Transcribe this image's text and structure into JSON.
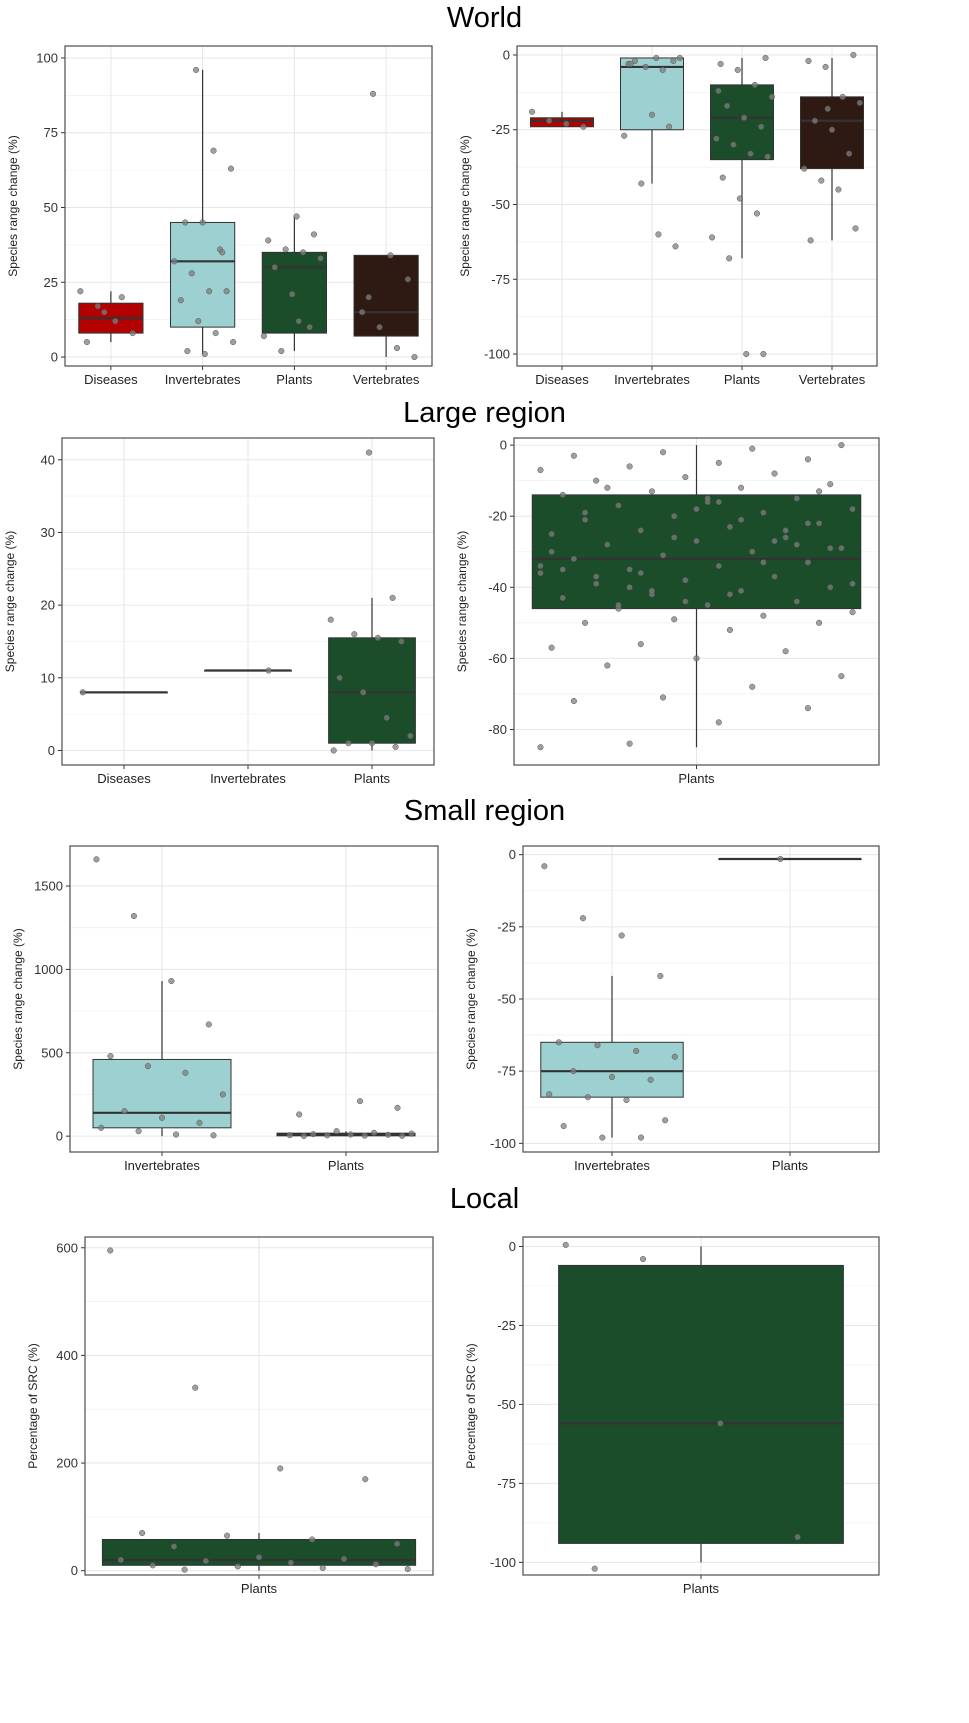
{
  "sections": [
    {
      "title": "World"
    },
    {
      "title": "Large region"
    },
    {
      "title": "Small region"
    },
    {
      "title": "Local"
    }
  ],
  "colors": {
    "Diseases": "#b30000",
    "Invertebrates": "#9dd0d0",
    "Plants": "#1b4d2b",
    "Vertebrates": "#2e1a12",
    "points": "#7f7f7f",
    "grid": "#e6e6e6",
    "panel_border": "#4d4d4d"
  },
  "chart_data": [
    {
      "id": "world-left",
      "type": "box",
      "section": "World",
      "ylabel": "Species range change (%)",
      "ylim": [
        -3,
        104
      ],
      "yticks": [
        0,
        25,
        50,
        75,
        100
      ],
      "categories": [
        "Diseases",
        "Invertebrates",
        "Plants",
        "Vertebrates"
      ],
      "boxes": [
        {
          "category": "Diseases",
          "q1": 8,
          "median": 13,
          "q3": 18,
          "whisker_low": 5,
          "whisker_high": 22
        },
        {
          "category": "Invertebrates",
          "q1": 10,
          "median": 32,
          "q3": 45,
          "whisker_low": 1,
          "whisker_high": 96
        },
        {
          "category": "Plants",
          "q1": 8,
          "median": 30,
          "q3": 35,
          "whisker_low": 2,
          "whisker_high": 47
        },
        {
          "category": "Vertebrates",
          "q1": 7,
          "median": 15,
          "q3": 34,
          "whisker_low": 0,
          "whisker_high": 34
        }
      ],
      "points": [
        [
          0,
          22
        ],
        [
          0,
          17
        ],
        [
          0,
          12
        ],
        [
          0,
          8
        ],
        [
          0,
          5
        ],
        [
          0,
          15
        ],
        [
          0,
          20
        ],
        [
          1,
          96
        ],
        [
          1,
          69
        ],
        [
          1,
          63
        ],
        [
          1,
          45
        ],
        [
          1,
          45
        ],
        [
          1,
          36
        ],
        [
          1,
          32
        ],
        [
          1,
          28
        ],
        [
          1,
          22
        ],
        [
          1,
          22
        ],
        [
          1,
          19
        ],
        [
          1,
          12
        ],
        [
          1,
          8
        ],
        [
          1,
          5
        ],
        [
          1,
          2
        ],
        [
          1,
          1
        ],
        [
          1,
          35
        ],
        [
          2,
          47
        ],
        [
          2,
          41
        ],
        [
          2,
          39
        ],
        [
          2,
          36
        ],
        [
          2,
          35
        ],
        [
          2,
          33
        ],
        [
          2,
          30
        ],
        [
          2,
          21
        ],
        [
          2,
          10
        ],
        [
          2,
          7
        ],
        [
          2,
          2
        ],
        [
          2,
          12
        ],
        [
          3,
          88
        ],
        [
          3,
          34
        ],
        [
          3,
          26
        ],
        [
          3,
          15
        ],
        [
          3,
          10
        ],
        [
          3,
          3
        ],
        [
          3,
          0
        ],
        [
          3,
          20
        ]
      ]
    },
    {
      "id": "world-right",
      "type": "box",
      "section": "World",
      "ylabel": "Species range change (%)",
      "ylim": [
        -104,
        3
      ],
      "yticks": [
        0,
        -25,
        -50,
        -75,
        -100
      ],
      "categories": [
        "Diseases",
        "Invertebrates",
        "Plants",
        "Vertebrates"
      ],
      "boxes": [
        {
          "category": "Diseases",
          "q1": -24,
          "median": -22,
          "q3": -21,
          "whisker_low": -24,
          "whisker_high": -19
        },
        {
          "category": "Invertebrates",
          "q1": -25,
          "median": -4,
          "q3": -1,
          "whisker_low": -43,
          "whisker_high": -1
        },
        {
          "category": "Plants",
          "q1": -35,
          "median": -21,
          "q3": -10,
          "whisker_low": -68,
          "whisker_high": -1
        },
        {
          "category": "Vertebrates",
          "q1": -38,
          "median": -22,
          "q3": -14,
          "whisker_low": -62,
          "whisker_high": -1
        }
      ],
      "points": [
        [
          0,
          -19
        ],
        [
          0,
          -22
        ],
        [
          0,
          -23
        ],
        [
          0,
          -24
        ],
        [
          1,
          -1
        ],
        [
          1,
          -2
        ],
        [
          1,
          -3
        ],
        [
          1,
          -4
        ],
        [
          1,
          -5
        ],
        [
          1,
          -1
        ],
        [
          1,
          -2
        ],
        [
          1,
          -20
        ],
        [
          1,
          -24
        ],
        [
          1,
          -27
        ],
        [
          1,
          -43
        ],
        [
          1,
          -60
        ],
        [
          1,
          -64
        ],
        [
          1,
          -3
        ],
        [
          2,
          -1
        ],
        [
          2,
          -3
        ],
        [
          2,
          -5
        ],
        [
          2,
          -10
        ],
        [
          2,
          -14
        ],
        [
          2,
          -17
        ],
        [
          2,
          -21
        ],
        [
          2,
          -24
        ],
        [
          2,
          -28
        ],
        [
          2,
          -30
        ],
        [
          2,
          -33
        ],
        [
          2,
          -34
        ],
        [
          2,
          -41
        ],
        [
          2,
          -48
        ],
        [
          2,
          -53
        ],
        [
          2,
          -61
        ],
        [
          2,
          -68
        ],
        [
          2,
          -100
        ],
        [
          2,
          -100
        ],
        [
          2,
          -12
        ],
        [
          3,
          0
        ],
        [
          3,
          -2
        ],
        [
          3,
          -4
        ],
        [
          3,
          -14
        ],
        [
          3,
          -16
        ],
        [
          3,
          -22
        ],
        [
          3,
          -25
        ],
        [
          3,
          -33
        ],
        [
          3,
          -38
        ],
        [
          3,
          -42
        ],
        [
          3,
          -45
        ],
        [
          3,
          -58
        ],
        [
          3,
          -62
        ],
        [
          3,
          -18
        ]
      ]
    },
    {
      "id": "large-left",
      "type": "box",
      "section": "Large region",
      "ylabel": "Species range change (%)",
      "ylim": [
        -2,
        43
      ],
      "yticks": [
        0,
        10,
        20,
        30,
        40
      ],
      "categories": [
        "Diseases",
        "Invertebrates",
        "Plants"
      ],
      "boxes": [
        {
          "category": "Diseases",
          "q1": 8,
          "median": 8,
          "q3": 8,
          "whisker_low": 8,
          "whisker_high": 8
        },
        {
          "category": "Invertebrates",
          "q1": 11,
          "median": 11,
          "q3": 11,
          "whisker_low": 11,
          "whisker_high": 11
        },
        {
          "category": "Plants",
          "q1": 1,
          "median": 8,
          "q3": 15.5,
          "whisker_low": 0,
          "whisker_high": 21
        }
      ],
      "points": [
        [
          0,
          8
        ],
        [
          1,
          11
        ],
        [
          2,
          41
        ],
        [
          2,
          21
        ],
        [
          2,
          18
        ],
        [
          2,
          16
        ],
        [
          2,
          15.5
        ],
        [
          2,
          15
        ],
        [
          2,
          10
        ],
        [
          2,
          8
        ],
        [
          2,
          4.5
        ],
        [
          2,
          2
        ],
        [
          2,
          1
        ],
        [
          2,
          1
        ],
        [
          2,
          0.5
        ],
        [
          2,
          0
        ]
      ]
    },
    {
      "id": "large-right",
      "type": "box",
      "section": "Large region",
      "ylabel": "Species range change (%)",
      "ylim": [
        -90,
        2
      ],
      "yticks": [
        0,
        -20,
        -40,
        -60,
        -80
      ],
      "categories": [
        "Plants"
      ],
      "boxes": [
        {
          "category": "Plants",
          "q1": -46,
          "median": -32,
          "q3": -14,
          "whisker_low": -85,
          "whisker_high": 0
        }
      ],
      "points": [
        [
          0,
          -85
        ],
        [
          0,
          -84
        ],
        [
          0,
          -78
        ],
        [
          0,
          -74
        ],
        [
          0,
          -72
        ],
        [
          0,
          -71
        ],
        [
          0,
          -68
        ],
        [
          0,
          -65
        ],
        [
          0,
          -62
        ],
        [
          0,
          -60
        ],
        [
          0,
          -58
        ],
        [
          0,
          -57
        ],
        [
          0,
          -56
        ],
        [
          0,
          -52
        ],
        [
          0,
          -50
        ],
        [
          0,
          -50
        ],
        [
          0,
          -49
        ],
        [
          0,
          -48
        ],
        [
          0,
          -47
        ],
        [
          0,
          -46
        ],
        [
          0,
          -45
        ],
        [
          0,
          -44
        ],
        [
          0,
          -43
        ],
        [
          0,
          -42
        ],
        [
          0,
          -41
        ],
        [
          0,
          -40
        ],
        [
          0,
          -39
        ],
        [
          0,
          -38
        ],
        [
          0,
          -37
        ],
        [
          0,
          -36
        ],
        [
          0,
          -35
        ],
        [
          0,
          -34
        ],
        [
          0,
          -33
        ],
        [
          0,
          -32
        ],
        [
          0,
          -31
        ],
        [
          0,
          -30
        ],
        [
          0,
          -29
        ],
        [
          0,
          -28
        ],
        [
          0,
          -27
        ],
        [
          0,
          -26
        ],
        [
          0,
          -25
        ],
        [
          0,
          -24
        ],
        [
          0,
          -23
        ],
        [
          0,
          -22
        ],
        [
          0,
          -21
        ],
        [
          0,
          -20
        ],
        [
          0,
          -19
        ],
        [
          0,
          -18
        ],
        [
          0,
          -17
        ],
        [
          0,
          -16
        ],
        [
          0,
          -15
        ],
        [
          0,
          -14
        ],
        [
          0,
          -13
        ],
        [
          0,
          -12
        ],
        [
          0,
          -11
        ],
        [
          0,
          -10
        ],
        [
          0,
          -9
        ],
        [
          0,
          -8
        ],
        [
          0,
          -7
        ],
        [
          0,
          -6
        ],
        [
          0,
          -5
        ],
        [
          0,
          -4
        ],
        [
          0,
          -3
        ],
        [
          0,
          -2
        ],
        [
          0,
          -1
        ],
        [
          0,
          0
        ],
        [
          0,
          -12
        ],
        [
          0,
          -18
        ],
        [
          0,
          -24
        ],
        [
          0,
          -30
        ],
        [
          0,
          -36
        ],
        [
          0,
          -42
        ],
        [
          0,
          -13
        ],
        [
          0,
          -19
        ],
        [
          0,
          -26
        ],
        [
          0,
          -33
        ],
        [
          0,
          -39
        ],
        [
          0,
          -45
        ],
        [
          0,
          -15
        ],
        [
          0,
          -28
        ],
        [
          0,
          -35
        ],
        [
          0,
          -41
        ],
        [
          0,
          -21
        ],
        [
          0,
          -29
        ],
        [
          0,
          -37
        ],
        [
          0,
          -44
        ],
        [
          0,
          -27
        ],
        [
          0,
          -34
        ],
        [
          0,
          -40
        ],
        [
          0,
          -16
        ],
        [
          0,
          -22
        ]
      ]
    },
    {
      "id": "small-left",
      "type": "box",
      "section": "Small region",
      "ylabel": "Species range change (%)",
      "ylim": [
        -95,
        1740
      ],
      "yticks": [
        0,
        500,
        1000,
        1500
      ],
      "categories": [
        "Invertebrates",
        "Plants"
      ],
      "boxes": [
        {
          "category": "Invertebrates",
          "q1": 50,
          "median": 140,
          "q3": 460,
          "whisker_low": 0,
          "whisker_high": 930
        },
        {
          "category": "Plants",
          "q1": 2,
          "median": 10,
          "q3": 18,
          "whisker_low": 0,
          "whisker_high": 30
        }
      ],
      "points": [
        [
          0,
          1660
        ],
        [
          0,
          1320
        ],
        [
          0,
          930
        ],
        [
          0,
          670
        ],
        [
          0,
          480
        ],
        [
          0,
          420
        ],
        [
          0,
          380
        ],
        [
          0,
          250
        ],
        [
          0,
          150
        ],
        [
          0,
          110
        ],
        [
          0,
          80
        ],
        [
          0,
          50
        ],
        [
          0,
          30
        ],
        [
          0,
          10
        ],
        [
          0,
          5
        ],
        [
          1,
          210
        ],
        [
          1,
          170
        ],
        [
          1,
          130
        ],
        [
          1,
          30
        ],
        [
          1,
          20
        ],
        [
          1,
          15
        ],
        [
          1,
          12
        ],
        [
          1,
          10
        ],
        [
          1,
          8
        ],
        [
          1,
          6
        ],
        [
          1,
          5
        ],
        [
          1,
          3
        ],
        [
          1,
          2
        ],
        [
          1,
          1
        ]
      ]
    },
    {
      "id": "small-right",
      "type": "box",
      "section": "Small region",
      "ylabel": "Species range change (%)",
      "ylim": [
        -103,
        3
      ],
      "yticks": [
        0,
        -25,
        -50,
        -75,
        -100
      ],
      "categories": [
        "Invertebrates",
        "Plants"
      ],
      "boxes": [
        {
          "category": "Invertebrates",
          "q1": -84,
          "median": -75,
          "q3": -65,
          "whisker_low": -98,
          "whisker_high": -42
        },
        {
          "category": "Plants",
          "q1": -1.5,
          "median": -1.5,
          "q3": -1.5,
          "whisker_low": -1.5,
          "whisker_high": -1.5
        }
      ],
      "points": [
        [
          0,
          -4
        ],
        [
          0,
          -22
        ],
        [
          0,
          -28
        ],
        [
          0,
          -42
        ],
        [
          0,
          -65
        ],
        [
          0,
          -66
        ],
        [
          0,
          -68
        ],
        [
          0,
          -70
        ],
        [
          0,
          -75
        ],
        [
          0,
          -77
        ],
        [
          0,
          -78
        ],
        [
          0,
          -83
        ],
        [
          0,
          -84
        ],
        [
          0,
          -85
        ],
        [
          0,
          -92
        ],
        [
          0,
          -94
        ],
        [
          0,
          -98
        ],
        [
          0,
          -98
        ],
        [
          1,
          -1.5
        ]
      ]
    },
    {
      "id": "local-left",
      "type": "box",
      "section": "Local",
      "ylabel": "Percentage of SRC (%)",
      "ylim": [
        -8,
        620
      ],
      "yticks": [
        0,
        200,
        400,
        600
      ],
      "categories": [
        "Plants"
      ],
      "boxes": [
        {
          "category": "Plants",
          "q1": 10,
          "median": 20,
          "q3": 58,
          "whisker_low": 0,
          "whisker_high": 70
        }
      ],
      "points": [
        [
          0,
          595
        ],
        [
          0,
          340
        ],
        [
          0,
          190
        ],
        [
          0,
          170
        ],
        [
          0,
          70
        ],
        [
          0,
          65
        ],
        [
          0,
          58
        ],
        [
          0,
          50
        ],
        [
          0,
          45
        ],
        [
          0,
          25
        ],
        [
          0,
          22
        ],
        [
          0,
          20
        ],
        [
          0,
          18
        ],
        [
          0,
          15
        ],
        [
          0,
          12
        ],
        [
          0,
          10
        ],
        [
          0,
          8
        ],
        [
          0,
          5
        ],
        [
          0,
          3
        ],
        [
          0,
          2
        ]
      ]
    },
    {
      "id": "local-right",
      "type": "box",
      "section": "Local",
      "ylabel": "Percentage of SRC (%)",
      "ylim": [
        -104,
        3
      ],
      "yticks": [
        0,
        -25,
        -50,
        -75,
        -100
      ],
      "categories": [
        "Plants"
      ],
      "boxes": [
        {
          "category": "Plants",
          "q1": -94,
          "median": -56,
          "q3": -6,
          "whisker_low": -100,
          "whisker_high": 0
        }
      ],
      "points": [
        [
          0,
          0.5
        ],
        [
          0,
          -4
        ],
        [
          0,
          -56
        ],
        [
          0,
          -92
        ],
        [
          0,
          -102
        ]
      ]
    }
  ]
}
